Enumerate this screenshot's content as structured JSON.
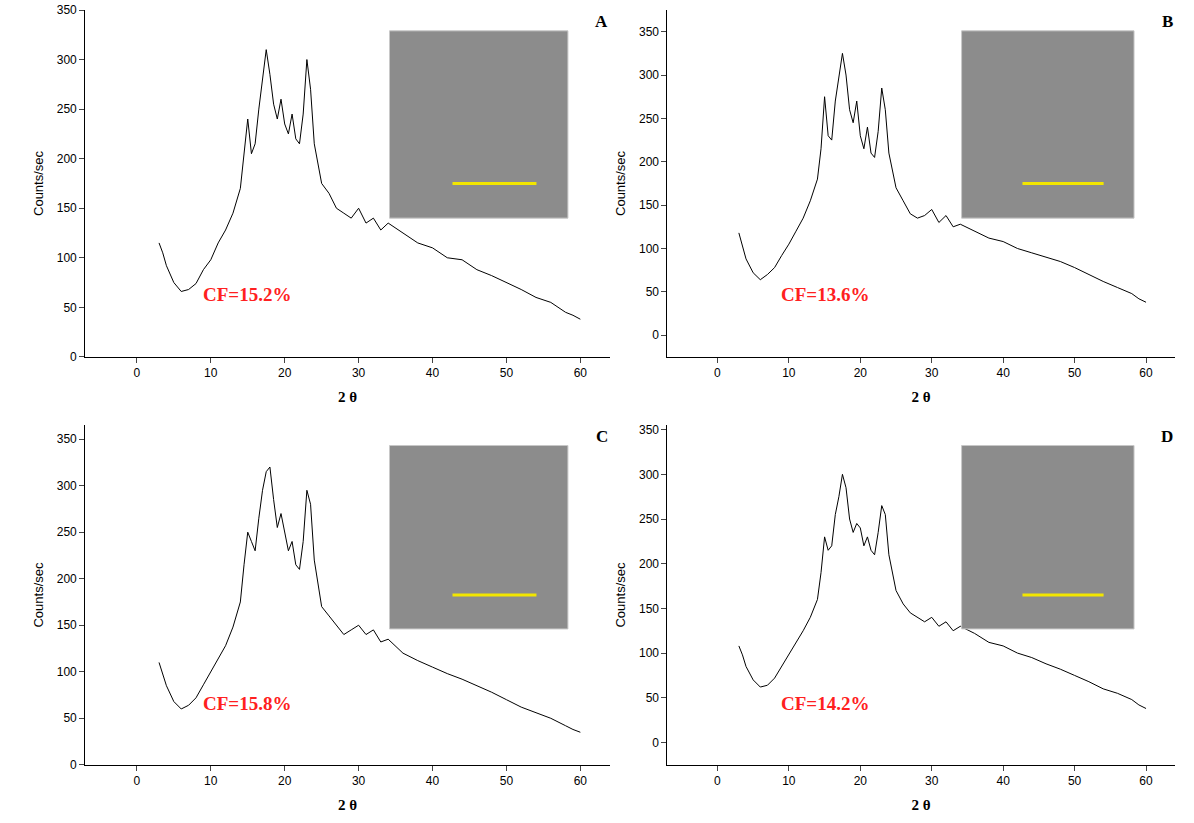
{
  "chart_data": [
    {
      "type": "line",
      "title": "A",
      "x_label": "2 θ",
      "y_label": "Counts/sec",
      "color": "#000000",
      "annotations": [
        "CF=15.2%"
      ],
      "x": [
        3,
        3.5,
        4,
        5,
        6,
        7,
        8,
        9,
        10,
        11,
        12,
        13,
        14,
        14.5,
        15,
        15.5,
        16,
        16.5,
        17,
        17.5,
        18,
        18.5,
        19,
        19.5,
        20,
        20.5,
        21,
        21.5,
        22,
        22.5,
        23,
        23.5,
        24,
        25,
        26,
        27,
        28,
        29,
        30,
        31,
        32,
        33,
        34,
        36,
        38,
        40,
        42,
        44,
        46,
        48,
        50,
        52,
        54,
        56,
        58,
        59,
        60
      ],
      "values": [
        115,
        105,
        92,
        75,
        66,
        68,
        74,
        88,
        98,
        115,
        128,
        145,
        170,
        205,
        240,
        205,
        215,
        250,
        280,
        310,
        285,
        255,
        240,
        260,
        235,
        225,
        245,
        220,
        215,
        245,
        300,
        270,
        215,
        175,
        165,
        150,
        145,
        140,
        150,
        135,
        140,
        128,
        135,
        125,
        115,
        110,
        100,
        98,
        88,
        82,
        75,
        68,
        60,
        55,
        45,
        42,
        38
      ],
      "xlim": [
        -7,
        64
      ],
      "ylim": [
        0,
        350
      ],
      "xticks": [
        0,
        10,
        20,
        30,
        40,
        50,
        60
      ],
      "yticks": [
        0,
        50,
        100,
        150,
        200,
        250,
        300,
        350
      ]
    },
    {
      "type": "line",
      "title": "B",
      "x_label": "2 θ",
      "y_label": "Counts/sec",
      "color": "#000000",
      "annotations": [
        "CF=13.6%"
      ],
      "x": [
        3,
        3.5,
        4,
        5,
        6,
        7,
        8,
        9,
        10,
        11,
        12,
        13,
        14,
        14.5,
        15,
        15.5,
        16,
        16.5,
        17,
        17.5,
        18,
        18.5,
        19,
        19.5,
        20,
        20.5,
        21,
        21.5,
        22,
        22.5,
        23,
        23.5,
        24,
        25,
        26,
        27,
        28,
        29,
        30,
        31,
        32,
        33,
        34,
        36,
        38,
        40,
        42,
        44,
        46,
        48,
        50,
        52,
        54,
        56,
        58,
        59,
        60
      ],
      "values": [
        118,
        102,
        88,
        72,
        64,
        70,
        78,
        92,
        105,
        120,
        135,
        155,
        180,
        215,
        275,
        230,
        225,
        270,
        300,
        325,
        300,
        260,
        245,
        270,
        230,
        215,
        240,
        210,
        205,
        235,
        285,
        260,
        210,
        170,
        155,
        140,
        135,
        138,
        145,
        130,
        138,
        125,
        128,
        120,
        112,
        108,
        100,
        95,
        90,
        85,
        78,
        70,
        62,
        55,
        48,
        42,
        38
      ],
      "xlim": [
        -7,
        64
      ],
      "ylim": [
        -25,
        375
      ],
      "xticks": [
        0,
        10,
        20,
        30,
        40,
        50,
        60
      ],
      "yticks": [
        0,
        50,
        100,
        150,
        200,
        250,
        300,
        350
      ]
    },
    {
      "type": "line",
      "title": "C",
      "x_label": "2 θ",
      "y_label": "Counts/sec",
      "color": "#000000",
      "annotations": [
        "CF=15.8%"
      ],
      "x": [
        3,
        3.5,
        4,
        5,
        6,
        7,
        8,
        9,
        10,
        11,
        12,
        13,
        14,
        14.5,
        15,
        15.5,
        16,
        16.5,
        17,
        17.5,
        18,
        18.5,
        19,
        19.5,
        20,
        20.5,
        21,
        21.5,
        22,
        22.5,
        23,
        23.5,
        24,
        25,
        26,
        27,
        28,
        29,
        30,
        31,
        32,
        33,
        34,
        36,
        38,
        40,
        42,
        44,
        46,
        48,
        50,
        52,
        54,
        56,
        58,
        59,
        60
      ],
      "values": [
        110,
        98,
        85,
        68,
        60,
        64,
        72,
        86,
        100,
        115,
        128,
        148,
        175,
        215,
        250,
        240,
        230,
        265,
        295,
        315,
        320,
        285,
        255,
        270,
        250,
        230,
        240,
        215,
        210,
        240,
        295,
        280,
        220,
        170,
        160,
        150,
        140,
        145,
        150,
        140,
        145,
        132,
        135,
        120,
        112,
        105,
        98,
        92,
        85,
        78,
        70,
        62,
        56,
        50,
        42,
        38,
        35
      ],
      "xlim": [
        -7,
        64
      ],
      "ylim": [
        0,
        365
      ],
      "xticks": [
        0,
        10,
        20,
        30,
        40,
        50,
        60
      ],
      "yticks": [
        0,
        50,
        100,
        150,
        200,
        250,
        300,
        350
      ]
    },
    {
      "type": "line",
      "title": "D",
      "x_label": "2 θ",
      "y_label": "Counts/sec",
      "color": "#000000",
      "annotations": [
        "CF=14.2%"
      ],
      "x": [
        3,
        3.5,
        4,
        5,
        6,
        7,
        8,
        9,
        10,
        11,
        12,
        13,
        14,
        14.5,
        15,
        15.5,
        16,
        16.5,
        17,
        17.5,
        18,
        18.5,
        19,
        19.5,
        20,
        20.5,
        21,
        21.5,
        22,
        22.5,
        23,
        23.5,
        24,
        25,
        26,
        27,
        28,
        29,
        30,
        31,
        32,
        33,
        34,
        36,
        38,
        40,
        42,
        44,
        46,
        48,
        50,
        52,
        54,
        56,
        58,
        59,
        60
      ],
      "values": [
        108,
        98,
        85,
        70,
        62,
        64,
        72,
        85,
        98,
        112,
        125,
        140,
        160,
        190,
        230,
        215,
        220,
        255,
        275,
        300,
        285,
        250,
        235,
        245,
        240,
        220,
        230,
        215,
        210,
        235,
        265,
        255,
        210,
        170,
        155,
        145,
        140,
        135,
        140,
        130,
        135,
        125,
        130,
        122,
        112,
        108,
        100,
        95,
        88,
        82,
        75,
        68,
        60,
        55,
        48,
        42,
        38
      ],
      "xlim": [
        -7,
        64
      ],
      "ylim": [
        -25,
        355
      ],
      "xticks": [
        0,
        10,
        20,
        30,
        40,
        50,
        60
      ],
      "yticks": [
        0,
        50,
        100,
        150,
        200,
        250,
        300,
        350
      ]
    }
  ]
}
